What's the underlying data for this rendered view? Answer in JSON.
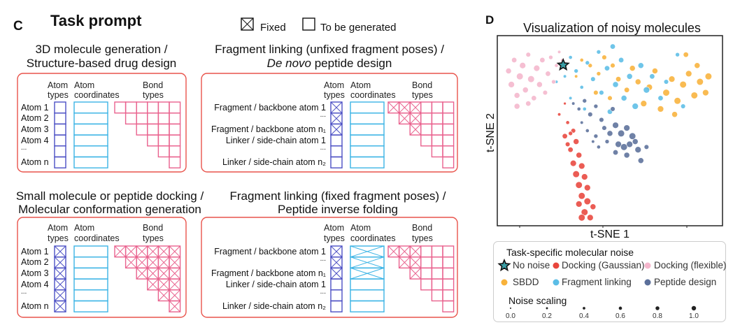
{
  "panel_c": {
    "label": "C",
    "title": "Task prompt",
    "legend": {
      "fixed": "Fixed",
      "to_generate": "To be generated"
    },
    "colors": {
      "atom_types": "#4b4fc4",
      "coordinates": "#3cb4e5",
      "bond_types": "#e9628e",
      "box": "#e9544c"
    },
    "panels": [
      {
        "title_lines": [
          [
            {
              "text": "3D molecule generation /",
              "italic": false
            }
          ],
          [
            {
              "text": "Structure-based drug design",
              "italic": false
            }
          ]
        ],
        "headers": {
          "atom_types": [
            "Atom",
            "types"
          ],
          "coordinates": [
            "Atom",
            "coordinates"
          ],
          "bond_types": [
            "Bond",
            "types"
          ]
        },
        "rows": [
          "Atom 1",
          "Atom 2",
          "Atom 3",
          "Atom 4",
          "...",
          "Atom n"
        ],
        "fixed_rows": {
          "atom_types": 0,
          "coordinates": 0,
          "bond_types": 0
        }
      },
      {
        "title_lines": [
          [
            {
              "text": "Fragment linking (unfixed fragment poses) /",
              "italic": false
            }
          ],
          [
            {
              "text": "De novo",
              "italic": true
            },
            {
              "text": " peptide design",
              "italic": false
            }
          ]
        ],
        "headers": {
          "atom_types": [
            "Atom",
            "types"
          ],
          "coordinates": [
            "Atom",
            "coordinates"
          ],
          "bond_types": [
            "Bond",
            "types"
          ]
        },
        "rows": [
          "Fragment / backbone atom 1",
          "...",
          "Fragment / backbone atom n₁",
          "Linker / side-chain atom 1",
          "...",
          "Linker / side-chain atom n₂"
        ],
        "fixed_rows": {
          "atom_types": 3,
          "coordinates": 0,
          "bond_types": 3
        }
      },
      {
        "title_lines": [
          [
            {
              "text": "Small molecule or peptide docking /",
              "italic": false
            }
          ],
          [
            {
              "text": "Molecular conformation generation",
              "italic": false
            }
          ]
        ],
        "headers": {
          "atom_types": [
            "Atom",
            "types"
          ],
          "coordinates": [
            "Atom",
            "coordinates"
          ],
          "bond_types": [
            "Bond",
            "types"
          ]
        },
        "rows": [
          "Atom 1",
          "Atom 2",
          "Atom 3",
          "Atom 4",
          "...",
          "Atom n"
        ],
        "fixed_rows": {
          "atom_types": 6,
          "coordinates": 0,
          "bond_types": 6
        }
      },
      {
        "title_lines": [
          [
            {
              "text": "Fragment linking (fixed fragment poses) /",
              "italic": false
            }
          ],
          [
            {
              "text": "Peptide inverse folding",
              "italic": false
            }
          ]
        ],
        "headers": {
          "atom_types": [
            "Atom",
            "types"
          ],
          "coordinates": [
            "Atom",
            "coordinates"
          ],
          "bond_types": [
            "Bond",
            "types"
          ]
        },
        "rows": [
          "Fragment / backbone atom 1",
          "...",
          "Fragment / backbone atom n₁",
          "Linker / side-chain atom 1",
          "...",
          "Linker / side-chain atom n₂"
        ],
        "fixed_rows": {
          "atom_types": 3,
          "coordinates": 3,
          "bond_types": 3
        }
      }
    ]
  },
  "panel_d": {
    "label": "D",
    "chart_data": {
      "type": "scatter",
      "title": "Visualization of noisy molecules",
      "xlabel": "t-SNE 1",
      "ylabel": "t-SNE 2",
      "xlim": [
        -40,
        40
      ],
      "ylim": [
        -35,
        35
      ],
      "grid": false,
      "legend_title": "Task-specific molecular noise",
      "legend_position": "bottom",
      "reference": {
        "name": "No noise",
        "marker": "star",
        "color": "#3a9ea5",
        "x": -16.6,
        "y": 24.2
      },
      "size_legend": {
        "title": "Noise scaling",
        "values": [
          0.0,
          0.2,
          0.4,
          0.6,
          0.8,
          1.0
        ],
        "labels": [
          "0.0",
          "0.2",
          "0.4",
          "0.6",
          "0.8",
          "1.0"
        ]
      },
      "series": [
        {
          "name": "Docking (Gaussian)",
          "color": "#e8453c",
          "points": [
            [
              -18,
              6,
              0.3
            ],
            [
              -16,
              10,
              0.2
            ],
            [
              -15,
              3,
              0.4
            ],
            [
              -13,
              0,
              0.6
            ],
            [
              -16,
              -2,
              0.7
            ],
            [
              -12,
              -4,
              0.8
            ],
            [
              -14,
              -7,
              0.7
            ],
            [
              -11,
              -9,
              0.8
            ],
            [
              -13,
              -12,
              0.9
            ],
            [
              -10,
              -13,
              0.9
            ],
            [
              -12,
              -16,
              1.0
            ],
            [
              -9,
              -17,
              0.9
            ],
            [
              -11,
              -20,
              1.0
            ],
            [
              -8,
              -21,
              0.9
            ],
            [
              -10,
              -24,
              1.0
            ],
            [
              -8,
              -26,
              1.0
            ],
            [
              -11,
              -27,
              0.9
            ],
            [
              -9,
              -30,
              1.0
            ],
            [
              -6,
              -28,
              0.8
            ],
            [
              -10,
              -32,
              1.0
            ],
            [
              -7,
              -32,
              0.9
            ],
            [
              -14,
              -1,
              0.5
            ],
            [
              -15,
              -5,
              0.6
            ]
          ]
        },
        {
          "name": "Docking (flexible)",
          "color": "#f4b6cc",
          "points": [
            [
              -36,
              22,
              0.8
            ],
            [
              -35,
              17,
              0.9
            ],
            [
              -34,
              26,
              0.7
            ],
            [
              -33,
              13,
              0.8
            ],
            [
              -32,
              20,
              1.0
            ],
            [
              -31,
              24,
              0.9
            ],
            [
              -30,
              15,
              0.8
            ],
            [
              -29,
              28,
              0.6
            ],
            [
              -28,
              19,
              1.0
            ],
            [
              -27,
              12,
              0.7
            ],
            [
              -26,
              23,
              0.9
            ],
            [
              -25,
              17,
              0.8
            ],
            [
              -24,
              26,
              0.7
            ],
            [
              -23,
              14,
              0.6
            ],
            [
              -22,
              21,
              0.7
            ],
            [
              -21,
              27,
              0.5
            ],
            [
              -20,
              18,
              0.5
            ],
            [
              -19,
              24,
              0.4
            ],
            [
              -18,
              29,
              0.3
            ],
            [
              -17,
              26,
              0.2
            ],
            [
              -33,
              9,
              0.8
            ],
            [
              -29,
              10,
              0.7
            ]
          ]
        },
        {
          "name": "SBDD",
          "color": "#f8b23a",
          "points": [
            [
              -10,
              26,
              0.4
            ],
            [
              -7,
              24,
              0.5
            ],
            [
              -4,
              21,
              0.5
            ],
            [
              -2,
              27,
              0.6
            ],
            [
              1,
              24,
              0.6
            ],
            [
              3,
              19,
              0.7
            ],
            [
              -5,
              14,
              0.6
            ],
            [
              0,
              12,
              0.6
            ],
            [
              6,
              15,
              0.7
            ],
            [
              8,
              23,
              0.8
            ],
            [
              10,
              18,
              0.8
            ],
            [
              12,
              10,
              0.9
            ],
            [
              14,
              16,
              0.9
            ],
            [
              16,
              22,
              0.8
            ],
            [
              18,
              8,
              0.9
            ],
            [
              20,
              14,
              1.0
            ],
            [
              22,
              19,
              0.9
            ],
            [
              24,
              11,
              1.0
            ],
            [
              26,
              17,
              1.0
            ],
            [
              28,
              21,
              0.9
            ],
            [
              30,
              13,
              1.0
            ],
            [
              32,
              18,
              1.0
            ],
            [
              34,
              14,
              0.9
            ],
            [
              35,
              20,
              1.0
            ],
            [
              31,
              24,
              0.8
            ],
            [
              27,
              28,
              0.7
            ],
            [
              23,
              6,
              0.8
            ],
            [
              -12,
              20,
              0.3
            ]
          ]
        },
        {
          "name": "Fragment linking",
          "color": "#5bbde6",
          "points": [
            [
              -19,
              18,
              0.3
            ],
            [
              -16,
              20,
              0.3
            ],
            [
              -14,
              27,
              0.4
            ],
            [
              -12,
              22,
              0.5
            ],
            [
              -10,
              16,
              0.4
            ],
            [
              -8,
              25,
              0.5
            ],
            [
              -6,
              19,
              0.6
            ],
            [
              -4,
              29,
              0.5
            ],
            [
              -3,
              14,
              0.6
            ],
            [
              -1,
              23,
              0.7
            ],
            [
              1,
              31,
              0.7
            ],
            [
              2,
              17,
              0.8
            ],
            [
              4,
              26,
              0.7
            ],
            [
              5,
              12,
              0.8
            ],
            [
              7,
              20,
              0.8
            ],
            [
              9,
              9,
              0.9
            ],
            [
              11,
              24,
              0.8
            ],
            [
              13,
              15,
              0.9
            ],
            [
              15,
              20,
              0.7
            ],
            [
              18,
              12,
              0.7
            ],
            [
              20,
              18,
              0.6
            ],
            [
              24,
              28,
              0.5
            ],
            [
              26,
              9,
              0.6
            ],
            [
              -9,
              8,
              0.4
            ],
            [
              -14,
              12,
              0.3
            ],
            [
              0,
              7,
              0.7
            ]
          ]
        },
        {
          "name": "Peptide design",
          "color": "#5b6f9a",
          "points": [
            [
              -13,
              10,
              0.3
            ],
            [
              -11,
              8,
              0.4
            ],
            [
              -9,
              11,
              0.5
            ],
            [
              -7,
              6,
              0.6
            ],
            [
              -5,
              9,
              0.5
            ],
            [
              -3,
              4,
              0.6
            ],
            [
              -10,
              3,
              0.3
            ],
            [
              -8,
              0,
              0.4
            ],
            [
              -5,
              -2,
              0.5
            ],
            [
              -2,
              1,
              0.6
            ],
            [
              0,
              -1,
              0.8
            ],
            [
              2,
              2,
              0.9
            ],
            [
              4,
              -1,
              1.0
            ],
            [
              6,
              1,
              0.9
            ],
            [
              8,
              -2,
              1.0
            ],
            [
              3,
              -5,
              0.9
            ],
            [
              5,
              -6,
              1.0
            ],
            [
              7,
              -5,
              0.9
            ],
            [
              9,
              -4,
              0.8
            ],
            [
              10,
              -7,
              0.9
            ],
            [
              6,
              -9,
              0.8
            ],
            [
              2,
              -8,
              0.7
            ],
            [
              11,
              -11,
              0.8
            ],
            [
              13,
              -6,
              0.6
            ],
            [
              -1,
              -4,
              0.5
            ],
            [
              -4,
              -6,
              0.4
            ],
            [
              -6,
              -4,
              0.3
            ],
            [
              1,
              8,
              0.6
            ]
          ]
        }
      ]
    }
  }
}
